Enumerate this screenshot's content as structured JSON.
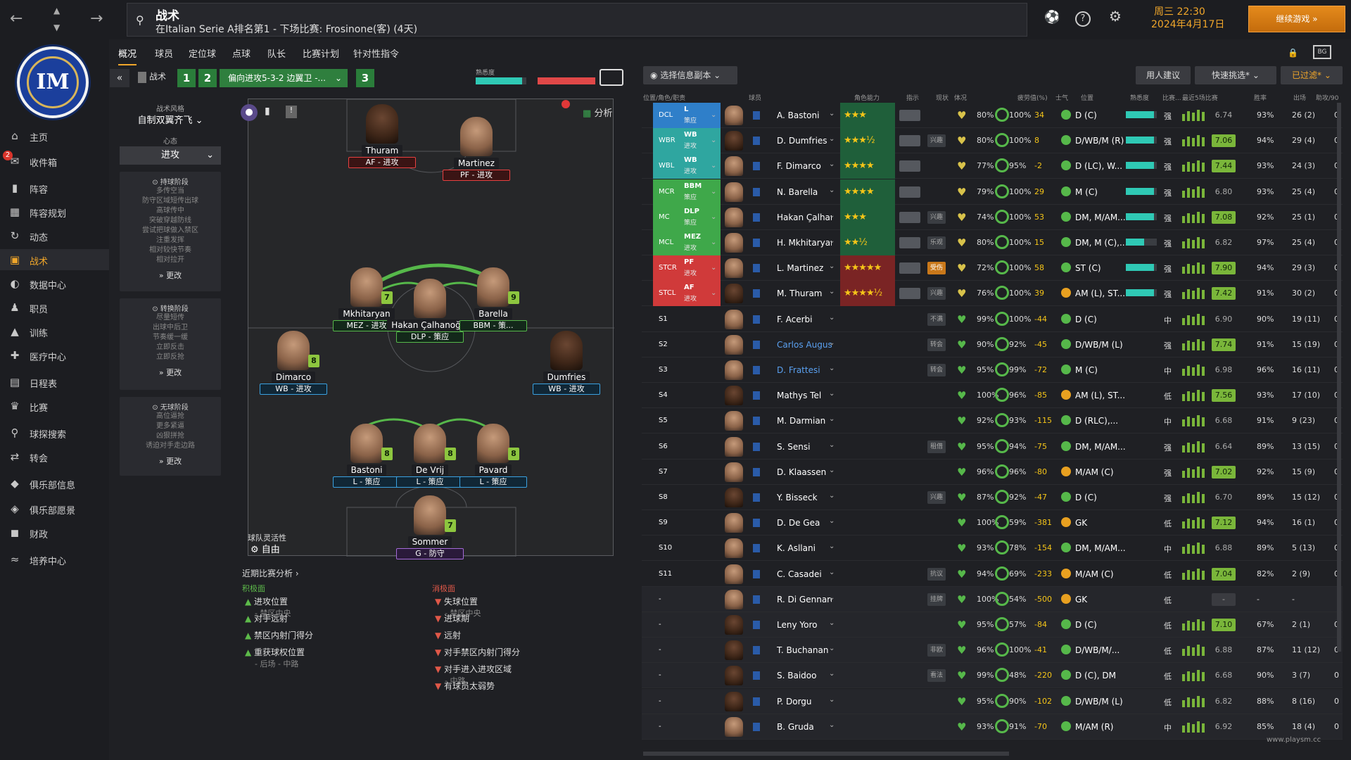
{
  "header": {
    "title": "战术",
    "subtitle": "在Italian Serie A排名第1 - 下场比赛: Frosinone(客) (4天)",
    "date_line1": "周三 22:30",
    "date_line2": "2024年4月17日",
    "continue": "继续游戏"
  },
  "sidebar": {
    "items": [
      {
        "label": "主页",
        "icon": "home-icon"
      },
      {
        "label": "收件箱",
        "icon": "inbox-icon",
        "badge": "2"
      },
      {
        "label": "阵容",
        "icon": "squad-icon"
      },
      {
        "label": "阵容规划",
        "icon": "planner-icon"
      },
      {
        "label": "动态",
        "icon": "dynamics-icon"
      },
      {
        "label": "战术",
        "icon": "tactics-icon"
      },
      {
        "label": "数据中心",
        "icon": "data-icon"
      },
      {
        "label": "职员",
        "icon": "staff-icon"
      },
      {
        "label": "训练",
        "icon": "training-icon"
      },
      {
        "label": "医疗中心",
        "icon": "medical-icon"
      },
      {
        "label": "日程表",
        "icon": "schedule-icon"
      },
      {
        "label": "比赛",
        "icon": "trophy-icon"
      },
      {
        "label": "球探搜索",
        "icon": "scout-icon"
      },
      {
        "label": "转会",
        "icon": "transfer-icon"
      },
      {
        "label": "俱乐部信息",
        "icon": "club-icon"
      },
      {
        "label": "俱乐部愿景",
        "icon": "vision-icon"
      },
      {
        "label": "财政",
        "icon": "finance-icon"
      },
      {
        "label": "培养中心",
        "icon": "dev-icon"
      }
    ]
  },
  "tabs": [
    "概况",
    "球员",
    "定位球",
    "点球",
    "队长",
    "比赛计划",
    "针对性指令"
  ],
  "tactic": {
    "label": "战术",
    "slot1": "1",
    "slot2": "2",
    "name": "偏向进攻5-3-2 边翼卫 -...",
    "slot3": "3",
    "familiarity": "熟悉度",
    "analysis": "分析"
  },
  "panel": {
    "style_label": "战术风格",
    "style": "自制双翼齐飞",
    "mentality_label": "心态",
    "mentality": "进攻",
    "in_poss": {
      "title": "持球阶段",
      "lines": [
        "多传空当",
        "防守区域短传出球",
        "高球传中",
        "突破穿越防线",
        "尝试把球做入禁区",
        "注重发挥",
        "相对较快节奏",
        "相对拉开"
      ],
      "more": "更改"
    },
    "transition": {
      "title": "转换阶段",
      "lines": [
        "尽量短传",
        "出球中后卫",
        "节奏缓一缓",
        "立即反击",
        "立即反抢"
      ],
      "more": "更改"
    },
    "out_poss": {
      "title": "无球阶段",
      "lines": [
        "高位逼抢",
        "更多紧逼",
        "凶狠拼抢",
        "诱迫对手走边路"
      ],
      "more": "更改"
    }
  },
  "pitch": {
    "players": [
      {
        "name": "Thuram",
        "role": "AF - 进攻"
      },
      {
        "name": "Martinez",
        "role": "PF - 进攻"
      },
      {
        "name": "Mkhitaryan",
        "role": "MEZ - 进攻",
        "rating": "7"
      },
      {
        "name": "Hakan Çalhanoğlu",
        "role": "DLP - 策应"
      },
      {
        "name": "Barella",
        "role": "BBM - 策...",
        "rating": "9"
      },
      {
        "name": "Dimarco",
        "role": "WB - 进攻",
        "rating": "8"
      },
      {
        "name": "Dumfries",
        "role": "WB - 进攻"
      },
      {
        "name": "Bastoni",
        "role": "L - 策应",
        "rating": "8"
      },
      {
        "name": "De Vrij",
        "role": "L - 策应",
        "rating": "8"
      },
      {
        "name": "Pavard",
        "role": "L - 策应",
        "rating": "8"
      },
      {
        "name": "Sommer",
        "role": "G - 防守",
        "rating": "7"
      }
    ],
    "flex_label": "球队灵活性",
    "flex": "自由"
  },
  "analysis": {
    "title": "近期比赛分析",
    "pos_title": "积极面",
    "neg_title": "消极面",
    "pos": [
      {
        "t": "进攻位置",
        "s": "- 禁区中央"
      },
      {
        "t": "对手远射",
        "s": ""
      },
      {
        "t": "禁区内射门得分",
        "s": ""
      },
      {
        "t": "重获球权位置",
        "s": "- 后场 - 中路"
      }
    ],
    "neg": [
      {
        "t": "失球位置",
        "s": "- 禁区中央"
      },
      {
        "t": "进球期",
        "s": ""
      },
      {
        "t": "远射",
        "s": ""
      },
      {
        "t": "对手禁区内射门得分",
        "s": ""
      },
      {
        "t": "对手进入进攻区域",
        "s": "- 中路"
      },
      {
        "t": "有球员太弱势",
        "s": ""
      }
    ]
  },
  "table_controls": {
    "view": "选择信息副本",
    "advice": "用人建议",
    "quick": "快速挑选*",
    "filter": "已过滤*"
  },
  "columns": [
    "位置/角色/职责",
    "球员",
    "角色能力",
    "指示",
    "现状",
    "体况",
    "疲劳值(%)",
    "士气",
    "位置",
    "熟悉度",
    "比赛...",
    "最近5场比赛",
    "胜率",
    "出场",
    "助攻/90"
  ],
  "rows": [
    {
      "pos": "DCL",
      "role": "L",
      "duty": "策应",
      "name": "A. Bastoni",
      "stars": "★★★",
      "tag": "",
      "cond": "80%",
      "sharp": "100%",
      "v": "34",
      "p": "D (C)",
      "lvl": "强",
      "avg": "6.74",
      "wr": "93%",
      "apps": "26 (2)",
      "last": "0",
      "zone": "#2f7fc9",
      "face": "l"
    },
    {
      "pos": "WBR",
      "role": "WB",
      "duty": "进攻",
      "name": "D. Dumfries",
      "stars": "★★★½",
      "tag": "兴趣",
      "cond": "80%",
      "sharp": "100%",
      "v": "8",
      "p": "D/WB/M (R)",
      "lvl": "强",
      "avg": "7.06",
      "wr": "94%",
      "apps": "29 (4)",
      "last": "0",
      "zone": "#2fa6a0",
      "face": "d"
    },
    {
      "pos": "WBL",
      "role": "WB",
      "duty": "进攻",
      "name": "F. Dimarco",
      "stars": "★★★★",
      "tag": "",
      "cond": "77%",
      "sharp": "95%",
      "v": "-2",
      "p": "D (LC), W...",
      "lvl": "强",
      "avg": "7.44",
      "wr": "93%",
      "apps": "24 (3)",
      "last": "0",
      "zone": "#2fa6a0",
      "face": "l"
    },
    {
      "pos": "MCR",
      "role": "BBM",
      "duty": "策应",
      "name": "N. Barella",
      "stars": "★★★★",
      "tag": "",
      "cond": "79%",
      "sharp": "100%",
      "v": "29",
      "p": "M (C)",
      "lvl": "强",
      "avg": "6.80",
      "wr": "93%",
      "apps": "25 (4)",
      "last": "0",
      "zone": "#3fa84a",
      "face": "l"
    },
    {
      "pos": "MC",
      "role": "DLP",
      "duty": "策应",
      "name": "Hakan Çalhanoğlu",
      "stars": "★★★",
      "tag": "兴趣",
      "cond": "74%",
      "sharp": "100%",
      "v": "53",
      "p": "DM, M/AM...",
      "lvl": "强",
      "avg": "7.08",
      "wr": "92%",
      "apps": "25 (1)",
      "last": "0",
      "zone": "#3fa84a",
      "face": "l"
    },
    {
      "pos": "MCL",
      "role": "MEZ",
      "duty": "进攻",
      "name": "H. Mkhitaryan",
      "stars": "★★½",
      "tag": "乐观",
      "cond": "80%",
      "sharp": "100%",
      "v": "15",
      "p": "DM, M (C),...",
      "lvl": "强",
      "avg": "6.82",
      "wr": "97%",
      "apps": "25 (4)",
      "last": "0",
      "zone": "#3fa84a",
      "face": "l"
    },
    {
      "pos": "STCR",
      "role": "PF",
      "duty": "进攻",
      "name": "L. Martinez",
      "stars": "★★★★★",
      "tag": "受伤",
      "cond": "72%",
      "sharp": "100%",
      "v": "58",
      "p": "ST (C)",
      "lvl": "强",
      "avg": "7.90",
      "wr": "94%",
      "apps": "29 (3)",
      "last": "0",
      "zone": "#d03a3a",
      "face": "l"
    },
    {
      "pos": "STCL",
      "role": "AF",
      "duty": "进攻",
      "name": "M. Thuram",
      "stars": "★★★★½",
      "tag": "兴趣",
      "cond": "76%",
      "sharp": "100%",
      "v": "39",
      "p": "AM (L), ST...",
      "lvl": "强",
      "avg": "7.42",
      "wr": "91%",
      "apps": "30 (2)",
      "last": "0",
      "zone": "#d03a3a",
      "face": "d"
    },
    {
      "pos": "S1",
      "role": "",
      "duty": "",
      "name": "F. Acerbi",
      "stars": "",
      "tag": "不满",
      "cond": "99%",
      "sharp": "100%",
      "v": "-44",
      "p": "D (C)",
      "lvl": "中",
      "avg": "6.90",
      "wr": "90%",
      "apps": "19 (11)",
      "last": "0",
      "zone": "",
      "face": "l"
    },
    {
      "pos": "S2",
      "role": "",
      "duty": "",
      "name": "Carlos Augusto",
      "stars": "",
      "tag": "转会",
      "cond": "90%",
      "sharp": "92%",
      "v": "-45",
      "p": "D/WB/M (L)",
      "lvl": "强",
      "avg": "7.74",
      "wr": "91%",
      "apps": "15 (19)",
      "last": "0",
      "zone": "",
      "face": "l"
    },
    {
      "pos": "S3",
      "role": "",
      "duty": "",
      "name": "D. Frattesi",
      "stars": "",
      "tag": "转会",
      "cond": "95%",
      "sharp": "99%",
      "v": "-72",
      "p": "M (C)",
      "lvl": "中",
      "avg": "6.98",
      "wr": "96%",
      "apps": "16 (11)",
      "last": "0",
      "zone": "",
      "face": "l"
    },
    {
      "pos": "S4",
      "role": "",
      "duty": "",
      "name": "Mathys Tel",
      "stars": "",
      "tag": "",
      "cond": "100%",
      "sharp": "96%",
      "v": "-85",
      "p": "AM (L), ST...",
      "lvl": "低",
      "avg": "7.56",
      "wr": "93%",
      "apps": "17 (10)",
      "last": "0",
      "zone": "",
      "face": "d"
    },
    {
      "pos": "S5",
      "role": "",
      "duty": "",
      "name": "M. Darmian",
      "stars": "",
      "tag": "",
      "cond": "92%",
      "sharp": "93%",
      "v": "-115",
      "p": "D (RLC),...",
      "lvl": "中",
      "avg": "6.68",
      "wr": "91%",
      "apps": "9 (23)",
      "last": "0",
      "zone": "",
      "face": "l"
    },
    {
      "pos": "S6",
      "role": "",
      "duty": "",
      "name": "S. Sensi",
      "stars": "",
      "tag": "租借",
      "cond": "95%",
      "sharp": "94%",
      "v": "-75",
      "p": "DM, M/AM...",
      "lvl": "强",
      "avg": "6.64",
      "wr": "89%",
      "apps": "13 (15)",
      "last": "0",
      "zone": "",
      "face": "l"
    },
    {
      "pos": "S7",
      "role": "",
      "duty": "",
      "name": "D. Klaassen",
      "stars": "",
      "tag": "",
      "cond": "96%",
      "sharp": "96%",
      "v": "-80",
      "p": "M/AM (C)",
      "lvl": "强",
      "avg": "7.02",
      "wr": "92%",
      "apps": "15 (9)",
      "last": "0",
      "zone": "",
      "face": "l"
    },
    {
      "pos": "S8",
      "role": "",
      "duty": "",
      "name": "Y. Bisseck",
      "stars": "",
      "tag": "兴趣",
      "cond": "87%",
      "sharp": "92%",
      "v": "-47",
      "p": "D (C)",
      "lvl": "强",
      "avg": "6.70",
      "wr": "89%",
      "apps": "15 (12)",
      "last": "0",
      "zone": "",
      "face": "d"
    },
    {
      "pos": "S9",
      "role": "",
      "duty": "",
      "name": "D. De Gea",
      "stars": "",
      "tag": "",
      "cond": "100%",
      "sharp": "59%",
      "v": "-381",
      "p": "GK",
      "lvl": "低",
      "avg": "7.12",
      "wr": "94%",
      "apps": "16 (1)",
      "last": "0",
      "zone": "",
      "face": "l"
    },
    {
      "pos": "S10",
      "role": "",
      "duty": "",
      "name": "K. Asllani",
      "stars": "",
      "tag": "",
      "cond": "93%",
      "sharp": "78%",
      "v": "-154",
      "p": "DM, M/AM...",
      "lvl": "中",
      "avg": "6.88",
      "wr": "89%",
      "apps": "5 (13)",
      "last": "0",
      "zone": "",
      "face": "l"
    },
    {
      "pos": "S11",
      "role": "",
      "duty": "",
      "name": "C. Casadei",
      "stars": "",
      "tag": "抗议",
      "cond": "94%",
      "sharp": "69%",
      "v": "-233",
      "p": "M/AM (C)",
      "lvl": "低",
      "avg": "7.04",
      "wr": "82%",
      "apps": "2 (9)",
      "last": "0",
      "zone": "",
      "face": "l"
    },
    {
      "pos": "-",
      "role": "",
      "duty": "",
      "name": "R. Di Gennaro",
      "stars": "",
      "tag": "挂牌",
      "cond": "100%",
      "sharp": "54%",
      "v": "-500",
      "p": "GK",
      "lvl": "低",
      "avg": "-",
      "wr": "-",
      "apps": "-",
      "last": "",
      "zone": "",
      "face": "l"
    },
    {
      "pos": "-",
      "role": "",
      "duty": "",
      "name": "Leny Yoro",
      "stars": "",
      "tag": "",
      "cond": "95%",
      "sharp": "57%",
      "v": "-84",
      "p": "D (C)",
      "lvl": "低",
      "avg": "7.10",
      "wr": "67%",
      "apps": "2 (1)",
      "last": "0",
      "zone": "",
      "face": "d"
    },
    {
      "pos": "-",
      "role": "",
      "duty": "",
      "name": "T. Buchanan",
      "stars": "",
      "tag": "非欧",
      "cond": "96%",
      "sharp": "100%",
      "v": "-41",
      "p": "D/WB/M/...",
      "lvl": "低",
      "avg": "6.88",
      "wr": "87%",
      "apps": "11 (12)",
      "last": "0",
      "zone": "",
      "face": "d"
    },
    {
      "pos": "-",
      "role": "",
      "duty": "",
      "name": "S. Baidoo",
      "stars": "",
      "tag": "看法",
      "cond": "99%",
      "sharp": "48%",
      "v": "-220",
      "p": "D (C), DM",
      "lvl": "低",
      "avg": "6.68",
      "wr": "90%",
      "apps": "3 (7)",
      "last": "0",
      "zone": "",
      "face": "d"
    },
    {
      "pos": "-",
      "role": "",
      "duty": "",
      "name": "P. Dorgu",
      "stars": "",
      "tag": "",
      "cond": "95%",
      "sharp": "90%",
      "v": "-102",
      "p": "D/WB/M (L)",
      "lvl": "低",
      "avg": "6.82",
      "wr": "88%",
      "apps": "8 (16)",
      "last": "0",
      "zone": "",
      "face": "d"
    },
    {
      "pos": "-",
      "role": "",
      "duty": "",
      "name": "B. Gruda",
      "stars": "",
      "tag": "",
      "cond": "93%",
      "sharp": "91%",
      "v": "-70",
      "p": "M/AM (R)",
      "lvl": "中",
      "avg": "6.92",
      "wr": "85%",
      "apps": "18 (4)",
      "last": "0",
      "zone": "",
      "face": "l"
    }
  ],
  "watermark": "www.playsm.cc"
}
